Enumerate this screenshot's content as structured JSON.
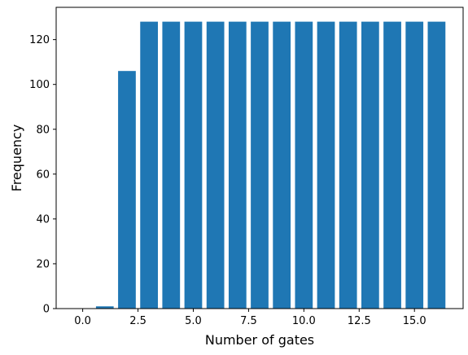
{
  "chart_data": {
    "type": "bar",
    "xlabel": "Number of gates",
    "ylabel": "Frequency",
    "x": [
      0,
      1,
      2,
      3,
      4,
      5,
      6,
      7,
      8,
      9,
      10,
      11,
      12,
      13,
      14,
      15,
      16
    ],
    "values": [
      0,
      1,
      106,
      128,
      128,
      128,
      128,
      128,
      128,
      128,
      128,
      128,
      128,
      128,
      128,
      128,
      128
    ],
    "xlim": [
      -1.2,
      17.2
    ],
    "ylim": [
      0,
      134.4
    ],
    "xticks": [
      0.0,
      2.5,
      5.0,
      7.5,
      10.0,
      12.5,
      15.0
    ],
    "xtick_labels": [
      "0.0",
      "2.5",
      "5.0",
      "7.5",
      "10.0",
      "12.5",
      "15.0"
    ],
    "yticks": [
      0,
      20,
      40,
      60,
      80,
      100,
      120
    ],
    "ytick_labels": [
      "0",
      "20",
      "40",
      "60",
      "80",
      "100",
      "120"
    ],
    "bar_width": 0.8,
    "grid": false,
    "legend": "none",
    "color": "#1f77b4"
  }
}
